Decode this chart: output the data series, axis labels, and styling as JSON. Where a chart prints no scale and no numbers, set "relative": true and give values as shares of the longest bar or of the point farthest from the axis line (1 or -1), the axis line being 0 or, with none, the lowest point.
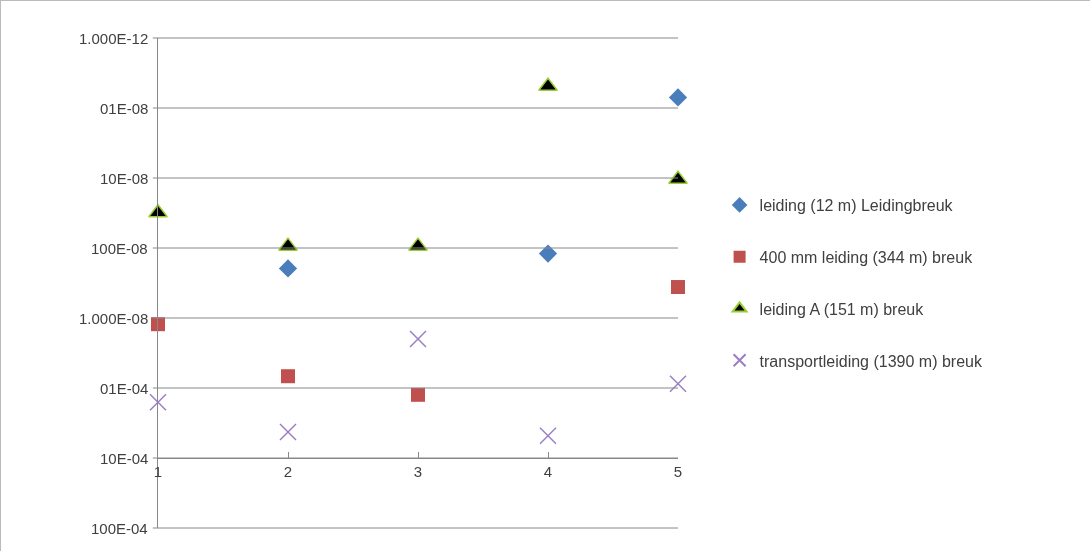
{
  "chart_data": {
    "type": "scatter",
    "relative": true,
    "x": [
      1,
      2,
      3,
      4,
      5
    ],
    "xlim": [
      1,
      5
    ],
    "xticks": [
      1,
      2,
      3,
      4,
      5
    ],
    "annotations": [
      "100E-04",
      "10E-04",
      "01E-04",
      "1.000E-08",
      "100E-08",
      "10E-08",
      "01E-08",
      "1.000E-12"
    ],
    "grid": "y",
    "legend": "right",
    "series": [
      {
        "name": "leiding (12 m) Leidingbreuk",
        "color": "#4a7ebb",
        "marker": "diamond",
        "values": [
          null,
          0.51,
          null,
          0.55,
          0.97
        ]
      },
      {
        "name": "400 mm leiding (344 m) breuk",
        "color": "#c0504d",
        "marker": "square",
        "values": [
          0.36,
          0.22,
          0.17,
          null,
          0.46
        ]
      },
      {
        "name": "leiding A (151 m) breuk",
        "color": "#000000",
        "marker": "triangle",
        "values": [
          0.66,
          0.57,
          0.57,
          1,
          0.75
        ]
      },
      {
        "name": "transportleiding (1390 m) breuk",
        "color": "#9b7fc4",
        "marker": "cross",
        "values": [
          0.15,
          0.07,
          0.32,
          0.06,
          0.2
        ]
      }
    ]
  }
}
